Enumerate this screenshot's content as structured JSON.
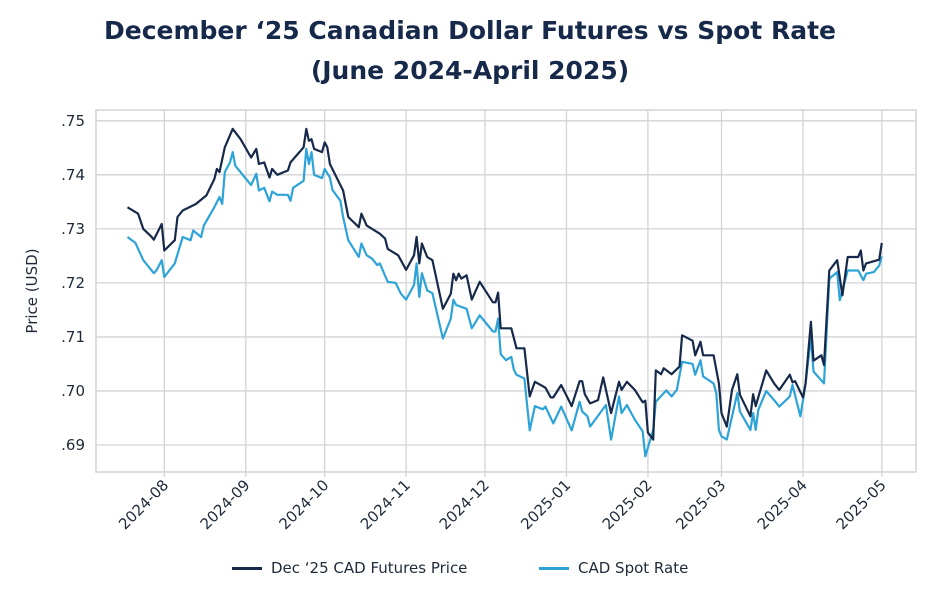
{
  "title_line1": "December ‘25 Canadian Dollar Futures vs Spot Rate",
  "title_line2": "(June 2024-April 2025)",
  "chart_data": {
    "type": "line",
    "title": "December ‘25 Canadian Dollar Futures vs Spot Rate (June 2024-April 2025)",
    "xlabel": "",
    "ylabel": "Price (USD)",
    "ylim": [
      0.685,
      0.752
    ],
    "yticks": [
      0.69,
      0.7,
      0.71,
      0.72,
      0.73,
      0.74,
      0.75
    ],
    "ytick_labels": [
      ".69",
      ".70",
      ".71",
      ".72",
      ".73",
      ".74",
      ".75"
    ],
    "xlim": [
      "2024-07-06",
      "2025-05-14"
    ],
    "xticks": [
      "2024-08-01",
      "2024-09-01",
      "2024-10-01",
      "2024-11-01",
      "2024-12-01",
      "2025-01-01",
      "2025-02-01",
      "2025-03-01",
      "2025-04-01",
      "2025-05-01"
    ],
    "xtick_labels": [
      "2024-08",
      "2024-09",
      "2024-10",
      "2024-11",
      "2024-12",
      "2025-01",
      "2025-02",
      "2025-03",
      "2025-04",
      "2025-05"
    ],
    "grid": true,
    "legend_position": "bottom",
    "series": [
      {
        "name": "Dec ‘25 CAD Futures Price",
        "color": "#16294a",
        "points": [
          [
            "2024-07-18",
            0.734
          ],
          [
            "2024-07-22",
            0.7328
          ],
          [
            "2024-07-24",
            0.73
          ],
          [
            "2024-07-27",
            0.7286
          ],
          [
            "2024-07-28",
            0.728
          ],
          [
            "2024-07-31",
            0.7309
          ],
          [
            "2024-08-01",
            0.726
          ],
          [
            "2024-08-05",
            0.7279
          ],
          [
            "2024-08-06",
            0.7322
          ],
          [
            "2024-08-08",
            0.7334
          ],
          [
            "2024-08-13",
            0.7346
          ],
          [
            "2024-08-17",
            0.7362
          ],
          [
            "2024-08-20",
            0.7392
          ],
          [
            "2024-08-21",
            0.7411
          ],
          [
            "2024-08-22",
            0.7405
          ],
          [
            "2024-08-24",
            0.7451
          ],
          [
            "2024-08-27",
            0.7485
          ],
          [
            "2024-08-30",
            0.7466
          ],
          [
            "2024-09-03",
            0.7432
          ],
          [
            "2024-09-05",
            0.7448
          ],
          [
            "2024-09-06",
            0.742
          ],
          [
            "2024-09-08",
            0.7423
          ],
          [
            "2024-09-10",
            0.7395
          ],
          [
            "2024-09-11",
            0.7411
          ],
          [
            "2024-09-13",
            0.74
          ],
          [
            "2024-09-17",
            0.7408
          ],
          [
            "2024-09-18",
            0.7423
          ],
          [
            "2024-09-23",
            0.7451
          ],
          [
            "2024-09-24",
            0.7485
          ],
          [
            "2024-09-25",
            0.7463
          ],
          [
            "2024-09-26",
            0.7466
          ],
          [
            "2024-09-27",
            0.7448
          ],
          [
            "2024-09-30",
            0.7442
          ],
          [
            "2024-10-01",
            0.746
          ],
          [
            "2024-10-02",
            0.7451
          ],
          [
            "2024-10-03",
            0.742
          ],
          [
            "2024-10-08",
            0.7371
          ],
          [
            "2024-10-10",
            0.7322
          ],
          [
            "2024-10-14",
            0.7303
          ],
          [
            "2024-10-15",
            0.7328
          ],
          [
            "2024-10-17",
            0.7306
          ],
          [
            "2024-10-22",
            0.7291
          ],
          [
            "2024-10-24",
            0.7282
          ],
          [
            "2024-10-25",
            0.7263
          ],
          [
            "2024-10-29",
            0.7251
          ],
          [
            "2024-11-01",
            0.7224
          ],
          [
            "2024-11-04",
            0.7251
          ],
          [
            "2024-11-05",
            0.7285
          ],
          [
            "2024-11-06",
            0.7236
          ],
          [
            "2024-11-07",
            0.7273
          ],
          [
            "2024-11-09",
            0.7248
          ],
          [
            "2024-11-11",
            0.7242
          ],
          [
            "2024-11-15",
            0.7152
          ],
          [
            "2024-11-18",
            0.718
          ],
          [
            "2024-11-19",
            0.7217
          ],
          [
            "2024-11-20",
            0.7205
          ],
          [
            "2024-11-21",
            0.7217
          ],
          [
            "2024-11-22",
            0.7208
          ],
          [
            "2024-11-24",
            0.7214
          ],
          [
            "2024-11-26",
            0.7169
          ],
          [
            "2024-11-29",
            0.7202
          ],
          [
            "2024-12-04",
            0.7164
          ],
          [
            "2024-12-05",
            0.7164
          ],
          [
            "2024-12-06",
            0.7182
          ],
          [
            "2024-12-07",
            0.7116
          ],
          [
            "2024-12-11",
            0.7116
          ],
          [
            "2024-12-13",
            0.7079
          ],
          [
            "2024-12-16",
            0.7079
          ],
          [
            "2024-12-18",
            0.699
          ],
          [
            "2024-12-20",
            0.7017
          ],
          [
            "2024-12-24",
            0.7006
          ],
          [
            "2024-12-26",
            0.6988
          ],
          [
            "2024-12-27",
            0.6988
          ],
          [
            "2024-12-30",
            0.7011
          ],
          [
            "2025-01-03",
            0.6972
          ],
          [
            "2025-01-06",
            0.7018
          ],
          [
            "2025-01-07",
            0.7018
          ],
          [
            "2025-01-08",
            0.6994
          ],
          [
            "2025-01-10",
            0.6977
          ],
          [
            "2025-01-13",
            0.6983
          ],
          [
            "2025-01-15",
            0.7025
          ],
          [
            "2025-01-18",
            0.6959
          ],
          [
            "2025-01-21",
            0.7017
          ],
          [
            "2025-01-22",
            0.7002
          ],
          [
            "2025-01-24",
            0.7017
          ],
          [
            "2025-01-27",
            0.7002
          ],
          [
            "2025-01-30",
            0.6979
          ],
          [
            "2025-01-31",
            0.6982
          ],
          [
            "2025-02-01",
            0.6923
          ],
          [
            "2025-02-03",
            0.691
          ],
          [
            "2025-02-04",
            0.7038
          ],
          [
            "2025-02-06",
            0.7031
          ],
          [
            "2025-02-07",
            0.7042
          ],
          [
            "2025-02-10",
            0.7031
          ],
          [
            "2025-02-13",
            0.7045
          ],
          [
            "2025-02-14",
            0.7103
          ],
          [
            "2025-02-18",
            0.7093
          ],
          [
            "2025-02-19",
            0.7066
          ],
          [
            "2025-02-21",
            0.7091
          ],
          [
            "2025-02-22",
            0.7066
          ],
          [
            "2025-02-26",
            0.7066
          ],
          [
            "2025-02-28",
            0.7014
          ],
          [
            "2025-03-01",
            0.6959
          ],
          [
            "2025-03-03",
            0.6934
          ],
          [
            "2025-03-05",
            0.7002
          ],
          [
            "2025-03-07",
            0.7031
          ],
          [
            "2025-03-08",
            0.6993
          ],
          [
            "2025-03-12",
            0.6953
          ],
          [
            "2025-03-13",
            0.6994
          ],
          [
            "2025-03-14",
            0.6972
          ],
          [
            "2025-03-18",
            0.7038
          ],
          [
            "2025-03-21",
            0.7014
          ],
          [
            "2025-03-23",
            0.7002
          ],
          [
            "2025-03-27",
            0.703
          ],
          [
            "2025-03-28",
            0.7016
          ],
          [
            "2025-03-29",
            0.7018
          ],
          [
            "2025-04-01",
            0.6988
          ],
          [
            "2025-04-02",
            0.7014
          ],
          [
            "2025-04-04",
            0.7128
          ],
          [
            "2025-04-05",
            0.7056
          ],
          [
            "2025-04-08",
            0.7066
          ],
          [
            "2025-04-09",
            0.7048
          ],
          [
            "2025-04-11",
            0.7223
          ],
          [
            "2025-04-14",
            0.7242
          ],
          [
            "2025-04-16",
            0.7177
          ],
          [
            "2025-04-18",
            0.7248
          ],
          [
            "2025-04-22",
            0.7248
          ],
          [
            "2025-04-23",
            0.726
          ],
          [
            "2025-04-24",
            0.7223
          ],
          [
            "2025-04-25",
            0.7236
          ],
          [
            "2025-04-30",
            0.7243
          ],
          [
            "2025-05-01",
            0.7274
          ]
        ]
      },
      {
        "name": "CAD Spot Rate",
        "color": "#2ea3d8",
        "points": [
          [
            "2024-07-18",
            0.7285
          ],
          [
            "2024-07-21",
            0.7274
          ],
          [
            "2024-07-24",
            0.7242
          ],
          [
            "2024-07-28",
            0.7218
          ],
          [
            "2024-07-29",
            0.7223
          ],
          [
            "2024-07-31",
            0.7242
          ],
          [
            "2024-08-01",
            0.7211
          ],
          [
            "2024-08-05",
            0.7236
          ],
          [
            "2024-08-08",
            0.7285
          ],
          [
            "2024-08-11",
            0.7279
          ],
          [
            "2024-08-12",
            0.7297
          ],
          [
            "2024-08-15",
            0.7285
          ],
          [
            "2024-08-16",
            0.7306
          ],
          [
            "2024-08-20",
            0.734
          ],
          [
            "2024-08-22",
            0.7359
          ],
          [
            "2024-08-23",
            0.7346
          ],
          [
            "2024-08-24",
            0.7405
          ],
          [
            "2024-08-26",
            0.7423
          ],
          [
            "2024-08-27",
            0.7442
          ],
          [
            "2024-08-28",
            0.7417
          ],
          [
            "2024-08-31",
            0.7399
          ],
          [
            "2024-09-03",
            0.7381
          ],
          [
            "2024-09-05",
            0.7402
          ],
          [
            "2024-09-06",
            0.7371
          ],
          [
            "2024-09-08",
            0.7376
          ],
          [
            "2024-09-10",
            0.7351
          ],
          [
            "2024-09-11",
            0.7369
          ],
          [
            "2024-09-13",
            0.7363
          ],
          [
            "2024-09-17",
            0.7363
          ],
          [
            "2024-09-18",
            0.7352
          ],
          [
            "2024-09-19",
            0.7376
          ],
          [
            "2024-09-23",
            0.7389
          ],
          [
            "2024-09-24",
            0.7448
          ],
          [
            "2024-09-25",
            0.742
          ],
          [
            "2024-09-26",
            0.7442
          ],
          [
            "2024-09-27",
            0.74
          ],
          [
            "2024-09-30",
            0.7394
          ],
          [
            "2024-10-01",
            0.7411
          ],
          [
            "2024-10-03",
            0.7395
          ],
          [
            "2024-10-04",
            0.7372
          ],
          [
            "2024-10-07",
            0.7352
          ],
          [
            "2024-10-08",
            0.7322
          ],
          [
            "2024-10-10",
            0.7279
          ],
          [
            "2024-10-14",
            0.7248
          ],
          [
            "2024-10-15",
            0.7273
          ],
          [
            "2024-10-17",
            0.7251
          ],
          [
            "2024-10-19",
            0.7245
          ],
          [
            "2024-10-21",
            0.7233
          ],
          [
            "2024-10-22",
            0.7236
          ],
          [
            "2024-10-25",
            0.7202
          ],
          [
            "2024-10-28",
            0.72
          ],
          [
            "2024-10-30",
            0.718
          ],
          [
            "2024-11-01",
            0.7169
          ],
          [
            "2024-11-04",
            0.7196
          ],
          [
            "2024-11-05",
            0.7236
          ],
          [
            "2024-11-06",
            0.7174
          ],
          [
            "2024-11-07",
            0.7218
          ],
          [
            "2024-11-09",
            0.7186
          ],
          [
            "2024-11-11",
            0.7181
          ],
          [
            "2024-11-15",
            0.7097
          ],
          [
            "2024-11-18",
            0.7134
          ],
          [
            "2024-11-19",
            0.7169
          ],
          [
            "2024-11-20",
            0.7159
          ],
          [
            "2024-11-24",
            0.7152
          ],
          [
            "2024-11-26",
            0.7116
          ],
          [
            "2024-11-29",
            0.714
          ],
          [
            "2024-12-04",
            0.711
          ],
          [
            "2024-12-05",
            0.711
          ],
          [
            "2024-12-06",
            0.7134
          ],
          [
            "2024-12-07",
            0.7068
          ],
          [
            "2024-12-09",
            0.7057
          ],
          [
            "2024-12-11",
            0.7063
          ],
          [
            "2024-12-12",
            0.7039
          ],
          [
            "2024-12-13",
            0.703
          ],
          [
            "2024-12-16",
            0.7023
          ],
          [
            "2024-12-18",
            0.6927
          ],
          [
            "2024-12-20",
            0.6972
          ],
          [
            "2024-12-23",
            0.6966
          ],
          [
            "2024-12-24",
            0.6971
          ],
          [
            "2024-12-27",
            0.694
          ],
          [
            "2024-12-30",
            0.6971
          ],
          [
            "2025-01-03",
            0.6927
          ],
          [
            "2025-01-06",
            0.698
          ],
          [
            "2025-01-07",
            0.6962
          ],
          [
            "2025-01-09",
            0.6953
          ],
          [
            "2025-01-10",
            0.6934
          ],
          [
            "2025-01-16",
            0.6974
          ],
          [
            "2025-01-18",
            0.691
          ],
          [
            "2025-01-21",
            0.699
          ],
          [
            "2025-01-22",
            0.6959
          ],
          [
            "2025-01-24",
            0.6974
          ],
          [
            "2025-01-27",
            0.6947
          ],
          [
            "2025-01-30",
            0.6925
          ],
          [
            "2025-01-31",
            0.6879
          ],
          [
            "2025-02-03",
            0.6928
          ],
          [
            "2025-02-04",
            0.698
          ],
          [
            "2025-02-08",
            0.7001
          ],
          [
            "2025-02-10",
            0.699
          ],
          [
            "2025-02-12",
            0.7002
          ],
          [
            "2025-02-14",
            0.7054
          ],
          [
            "2025-02-18",
            0.705
          ],
          [
            "2025-02-19",
            0.703
          ],
          [
            "2025-02-21",
            0.7057
          ],
          [
            "2025-02-22",
            0.7027
          ],
          [
            "2025-02-26",
            0.7014
          ],
          [
            "2025-02-27",
            0.6996
          ],
          [
            "2025-02-28",
            0.6928
          ],
          [
            "2025-03-01",
            0.6916
          ],
          [
            "2025-03-03",
            0.691
          ],
          [
            "2025-03-07",
            0.6996
          ],
          [
            "2025-03-08",
            0.6962
          ],
          [
            "2025-03-12",
            0.6928
          ],
          [
            "2025-03-13",
            0.6959
          ],
          [
            "2025-03-14",
            0.6928
          ],
          [
            "2025-03-15",
            0.6965
          ],
          [
            "2025-03-18",
            0.7
          ],
          [
            "2025-03-21",
            0.6983
          ],
          [
            "2025-03-23",
            0.6971
          ],
          [
            "2025-03-27",
            0.699
          ],
          [
            "2025-03-28",
            0.7011
          ],
          [
            "2025-03-31",
            0.6953
          ],
          [
            "2025-04-02",
            0.7014
          ],
          [
            "2025-04-04",
            0.71
          ],
          [
            "2025-04-05",
            0.7036
          ],
          [
            "2025-04-09",
            0.7014
          ],
          [
            "2025-04-11",
            0.7208
          ],
          [
            "2025-04-14",
            0.722
          ],
          [
            "2025-04-15",
            0.7168
          ],
          [
            "2025-04-18",
            0.7223
          ],
          [
            "2025-04-22",
            0.7223
          ],
          [
            "2025-04-24",
            0.7205
          ],
          [
            "2025-04-25",
            0.7217
          ],
          [
            "2025-04-28",
            0.722
          ],
          [
            "2025-04-30",
            0.7232
          ],
          [
            "2025-05-01",
            0.7249
          ]
        ]
      }
    ]
  }
}
